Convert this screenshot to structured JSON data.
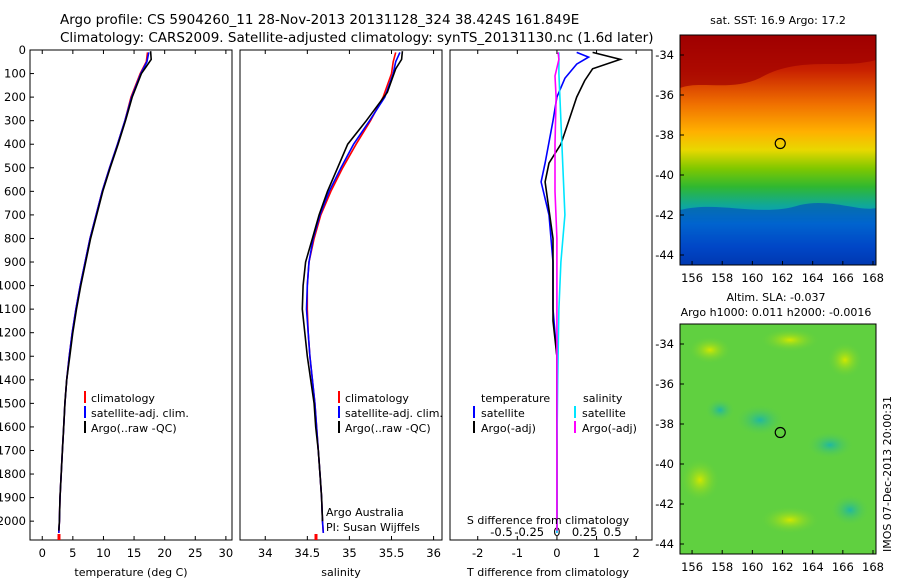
{
  "title_line1": "Argo profile: CS 5904260_11 28-Nov-2013 20131128_324 38.424S 161.849E",
  "title_line2": "Climatology: CARS2009. Satellite-adjusted climatology: synTS_20131130.nc (1.6d later)",
  "watermark": "IMOS 07-Dec-2013 20:00:31",
  "credit": [
    "Argo Australia",
    "PI: Susan Wijffels"
  ],
  "colors": {
    "climatology": "#ff0000",
    "satellite": "#0000ff",
    "argo": "#000000",
    "sal_satellite": "#00e5ff",
    "sal_argo": "#ff00ff"
  },
  "chart_data": [
    {
      "type": "line",
      "panel": "temperature",
      "xlabel": "temperature (deg C)",
      "ylabel": "",
      "xlim": [
        -2,
        31
      ],
      "ylim": [
        2080,
        0
      ],
      "xticks": [
        0,
        5,
        10,
        15,
        20,
        25,
        30
      ],
      "yticks": [
        0,
        100,
        200,
        300,
        400,
        500,
        600,
        700,
        800,
        900,
        1000,
        1100,
        1200,
        1300,
        1400,
        1500,
        1600,
        1700,
        1800,
        1900,
        2000
      ],
      "legend": [
        "climatology",
        "satellite-adj. clim.",
        "Argo(..raw -QC)"
      ],
      "legend_position": "lower-right",
      "series": [
        {
          "name": "climatology",
          "color": "#ff0000",
          "points": [
            [
              17.2,
              10
            ],
            [
              17.0,
              50
            ],
            [
              16.0,
              100
            ],
            [
              14.5,
              200
            ],
            [
              13.5,
              300
            ],
            [
              12.3,
              400
            ],
            [
              11.0,
              500
            ],
            [
              9.8,
              600
            ],
            [
              8.8,
              700
            ],
            [
              7.8,
              800
            ],
            [
              7.0,
              900
            ],
            [
              6.2,
              1000
            ],
            [
              5.5,
              1100
            ],
            [
              4.9,
              1200
            ],
            [
              4.4,
              1300
            ],
            [
              4.0,
              1400
            ],
            [
              3.7,
              1500
            ],
            [
              3.5,
              1600
            ],
            [
              3.3,
              1700
            ],
            [
              3.1,
              1800
            ],
            [
              2.9,
              1900
            ],
            [
              2.8,
              2000
            ],
            [
              2.7,
              2050
            ]
          ]
        },
        {
          "name": "satellite-adj. clim.",
          "color": "#0000ff",
          "points": [
            [
              17.4,
              10
            ],
            [
              17.1,
              50
            ],
            [
              16.1,
              100
            ],
            [
              14.6,
              200
            ],
            [
              13.5,
              300
            ],
            [
              12.3,
              400
            ],
            [
              11.0,
              500
            ],
            [
              9.8,
              600
            ],
            [
              8.8,
              700
            ],
            [
              7.8,
              800
            ],
            [
              7.0,
              900
            ],
            [
              6.2,
              1000
            ],
            [
              5.5,
              1100
            ],
            [
              4.9,
              1200
            ],
            [
              4.4,
              1300
            ],
            [
              4.0,
              1400
            ],
            [
              3.7,
              1500
            ],
            [
              3.5,
              1600
            ],
            [
              3.3,
              1700
            ],
            [
              3.1,
              1800
            ],
            [
              2.9,
              1900
            ],
            [
              2.8,
              2000
            ],
            [
              2.7,
              2050
            ]
          ]
        },
        {
          "name": "Argo(..raw -QC)",
          "color": "#000000",
          "points": [
            [
              17.7,
              5
            ],
            [
              17.8,
              40
            ],
            [
              17.0,
              70
            ],
            [
              16.2,
              100
            ],
            [
              14.7,
              200
            ],
            [
              13.6,
              300
            ],
            [
              12.4,
              400
            ],
            [
              11.1,
              500
            ],
            [
              9.9,
              600
            ],
            [
              8.9,
              700
            ],
            [
              7.9,
              800
            ],
            [
              7.1,
              900
            ],
            [
              6.3,
              1000
            ],
            [
              5.6,
              1100
            ],
            [
              5.0,
              1200
            ],
            [
              4.5,
              1300
            ],
            [
              4.0,
              1400
            ],
            [
              3.7,
              1500
            ],
            [
              3.5,
              1600
            ],
            [
              3.3,
              1700
            ],
            [
              3.1,
              1800
            ],
            [
              2.9,
              1900
            ],
            [
              2.8,
              2000
            ],
            [
              2.7,
              2040
            ]
          ]
        }
      ]
    },
    {
      "type": "line",
      "panel": "salinity",
      "xlabel": "salinity",
      "xlim": [
        33.7,
        36.1
      ],
      "ylim": [
        2080,
        0
      ],
      "xticks": [
        34,
        34.5,
        35,
        35.5,
        36
      ],
      "legend": [
        "climatology",
        "satellite-adj. clim.",
        "Argo(..raw -QC)"
      ],
      "legend_position": "lower-right",
      "series": [
        {
          "name": "climatology",
          "color": "#ff0000",
          "points": [
            [
              35.55,
              10
            ],
            [
              35.52,
              50
            ],
            [
              35.5,
              100
            ],
            [
              35.4,
              200
            ],
            [
              35.25,
              300
            ],
            [
              35.08,
              400
            ],
            [
              34.92,
              500
            ],
            [
              34.78,
              600
            ],
            [
              34.66,
              700
            ],
            [
              34.58,
              800
            ],
            [
              34.52,
              900
            ],
            [
              34.5,
              1000
            ],
            [
              34.5,
              1100
            ],
            [
              34.51,
              1200
            ],
            [
              34.53,
              1300
            ],
            [
              34.56,
              1400
            ],
            [
              34.59,
              1500
            ],
            [
              34.61,
              1600
            ],
            [
              34.63,
              1700
            ],
            [
              34.65,
              1800
            ],
            [
              34.67,
              1900
            ],
            [
              34.68,
              2000
            ],
            [
              34.69,
              2050
            ]
          ]
        },
        {
          "name": "satellite-adj. clim.",
          "color": "#0000ff",
          "points": [
            [
              35.6,
              10
            ],
            [
              35.55,
              50
            ],
            [
              35.52,
              100
            ],
            [
              35.42,
              200
            ],
            [
              35.24,
              300
            ],
            [
              35.05,
              400
            ],
            [
              34.9,
              500
            ],
            [
              34.76,
              600
            ],
            [
              34.65,
              700
            ],
            [
              34.57,
              800
            ],
            [
              34.52,
              900
            ],
            [
              34.5,
              1000
            ],
            [
              34.49,
              1100
            ],
            [
              34.51,
              1200
            ],
            [
              34.53,
              1300
            ],
            [
              34.56,
              1400
            ],
            [
              34.59,
              1500
            ],
            [
              34.61,
              1600
            ],
            [
              34.63,
              1700
            ],
            [
              34.65,
              1800
            ],
            [
              34.67,
              1900
            ],
            [
              34.68,
              2000
            ],
            [
              34.69,
              2050
            ]
          ]
        },
        {
          "name": "Argo(..raw -QC)",
          "color": "#000000",
          "points": [
            [
              35.63,
              5
            ],
            [
              35.62,
              40
            ],
            [
              35.55,
              80
            ],
            [
              35.45,
              180
            ],
            [
              35.2,
              300
            ],
            [
              34.98,
              400
            ],
            [
              34.86,
              500
            ],
            [
              34.74,
              600
            ],
            [
              34.64,
              700
            ],
            [
              34.56,
              800
            ],
            [
              34.48,
              900
            ],
            [
              34.45,
              1000
            ],
            [
              34.44,
              1100
            ],
            [
              34.47,
              1200
            ],
            [
              34.5,
              1300
            ],
            [
              34.54,
              1400
            ],
            [
              34.58,
              1500
            ],
            [
              34.6,
              1600
            ],
            [
              34.63,
              1700
            ],
            [
              34.65,
              1800
            ],
            [
              34.67,
              1900
            ],
            [
              34.68,
              2000
            ]
          ]
        }
      ]
    },
    {
      "type": "line",
      "panel": "difference",
      "xlabel": "T difference from climatology",
      "xlabel_top": "S difference from climatology",
      "xlim": [
        -2.7,
        2.4
      ],
      "ylim": [
        2080,
        0
      ],
      "xticks": [
        -2,
        -1,
        0,
        1,
        2
      ],
      "xticks_top": [
        -0.5,
        -0.25,
        0,
        0.25,
        0.5
      ],
      "legend_headers": [
        "temperature",
        "salinity"
      ],
      "legend": [
        "satellite",
        "Argo(-adj)",
        "satellite",
        "Argo(-adj)"
      ],
      "series": [
        {
          "name": "satellite",
          "color": "#0000ff",
          "points": [
            [
              0.5,
              10
            ],
            [
              0.8,
              30
            ],
            [
              0.5,
              60
            ],
            [
              0.2,
              120
            ],
            [
              0.0,
              200
            ],
            [
              -0.1,
              300
            ],
            [
              -0.3,
              480
            ],
            [
              -0.4,
              560
            ],
            [
              -0.2,
              700
            ],
            [
              -0.1,
              900
            ],
            [
              -0.1,
              1100
            ],
            [
              0.0,
              1300
            ],
            [
              0.0,
              1600
            ],
            [
              0.0,
              2050
            ]
          ]
        },
        {
          "name": "Argo(-adj)",
          "color": "#000000",
          "points": [
            [
              0.9,
              10
            ],
            [
              1.6,
              40
            ],
            [
              0.9,
              80
            ],
            [
              0.7,
              130
            ],
            [
              0.5,
              200
            ],
            [
              0.3,
              300
            ],
            [
              0.1,
              400
            ],
            [
              -0.2,
              480
            ],
            [
              -0.3,
              560
            ],
            [
              -0.1,
              800
            ],
            [
              -0.1,
              1000
            ],
            [
              -0.1,
              1150
            ],
            [
              0.0,
              1300
            ],
            [
              0.0,
              1600
            ],
            [
              0.0,
              2040
            ]
          ]
        },
        {
          "name": "satellite",
          "color": "#00e5ff",
          "points": [
            [
              0.05,
              10
            ],
            [
              0.05,
              100
            ],
            [
              0.1,
              300
            ],
            [
              0.15,
              500
            ],
            [
              0.2,
              700
            ],
            [
              0.1,
              900
            ],
            [
              0.05,
              1100
            ],
            [
              0.02,
              1400
            ],
            [
              0.0,
              1700
            ],
            [
              0.0,
              2050
            ]
          ]
        },
        {
          "name": "Argo(-adj)",
          "color": "#ff00ff",
          "points": [
            [
              0.03,
              10
            ],
            [
              0.05,
              40
            ],
            [
              -0.05,
              110
            ],
            [
              -0.02,
              200
            ],
            [
              -0.05,
              400
            ],
            [
              -0.05,
              600
            ],
            [
              0.0,
              800
            ],
            [
              0.0,
              1000
            ],
            [
              0.0,
              1200
            ],
            [
              0.0,
              1500
            ],
            [
              0.0,
              1800
            ],
            [
              0.0,
              2040
            ]
          ]
        }
      ]
    },
    {
      "type": "heatmap",
      "panel": "map-sst",
      "title": "sat. SST: 16.9 Argo: 17.2",
      "xlim": [
        155.2,
        168.2
      ],
      "ylim": [
        -44.5,
        -33
      ],
      "xticks": [
        156,
        158,
        160,
        162,
        164,
        166,
        168
      ],
      "yticks": [
        -34,
        -36,
        -38,
        -40,
        -42,
        -44
      ],
      "marker": {
        "lon": 161.849,
        "lat": -38.424
      }
    },
    {
      "type": "heatmap",
      "panel": "map-sla",
      "title_line1": "Altim. SLA: -0.037",
      "title_line2": "Argo h1000: 0.011 h2000: -0.0016",
      "xlim": [
        155.2,
        168.2
      ],
      "ylim": [
        -44.5,
        -33
      ],
      "xticks": [
        156,
        158,
        160,
        162,
        164,
        166,
        168
      ],
      "yticks": [
        -34,
        -36,
        -38,
        -40,
        -42,
        -44
      ],
      "marker": {
        "lon": 161.849,
        "lat": -38.424
      }
    }
  ]
}
